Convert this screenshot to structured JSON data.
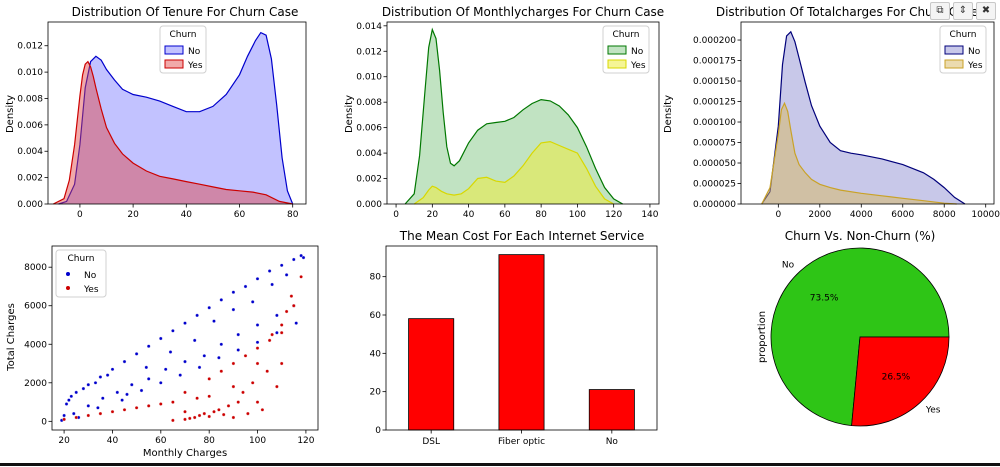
{
  "toolbar": {
    "icons": [
      "copy-icon",
      "expand-icon",
      "delete-icon"
    ],
    "glyphs": [
      "⧉",
      "⇕",
      "✖"
    ]
  },
  "colors": {
    "no_blue": "#0000cc",
    "yes_red": "#cc0000",
    "green": "#007700",
    "yellow": "#d8d800",
    "navy": "#00007a",
    "gold": "#c9a227",
    "bar": "#ff0000",
    "pie_no": "#2ec516",
    "pie_yes": "#ff0000"
  },
  "chart_data": [
    {
      "type": "area",
      "title": "Distribution Of Tenure For Churn Case",
      "xlabel": "",
      "ylabel": "Density",
      "xlim": [
        -12,
        85
      ],
      "ylim": [
        0,
        0.0138
      ],
      "xticks": [
        "0",
        "20",
        "40",
        "60",
        "80"
      ],
      "yticks": [
        "0.000",
        "0.002",
        "0.004",
        "0.006",
        "0.008",
        "0.010",
        "0.012"
      ],
      "legend": {
        "title": "Churn",
        "labels": [
          "No",
          "Yes"
        ],
        "position": "top-center"
      },
      "series": [
        {
          "name": "No",
          "x": [
            -8,
            -5,
            -2,
            0,
            2,
            4,
            6,
            8,
            10,
            13,
            16,
            20,
            25,
            30,
            35,
            40,
            45,
            50,
            55,
            60,
            63,
            66,
            68,
            70,
            72,
            74,
            76,
            78,
            80
          ],
          "y": [
            0,
            0.0002,
            0.0015,
            0.0045,
            0.0088,
            0.0108,
            0.0112,
            0.0109,
            0.0102,
            0.0094,
            0.0087,
            0.0083,
            0.0081,
            0.0078,
            0.0074,
            0.007,
            0.007,
            0.0074,
            0.0083,
            0.0098,
            0.0112,
            0.0124,
            0.013,
            0.0128,
            0.011,
            0.0075,
            0.0035,
            0.001,
            0
          ]
        },
        {
          "name": "Yes",
          "x": [
            -10,
            -6,
            -4,
            -2,
            0,
            1,
            2,
            3,
            4,
            5,
            6,
            8,
            10,
            13,
            16,
            20,
            25,
            30,
            35,
            40,
            45,
            50,
            55,
            60,
            65,
            70,
            75,
            80
          ],
          "y": [
            0,
            0.0004,
            0.0018,
            0.0045,
            0.0082,
            0.0098,
            0.0106,
            0.0108,
            0.0104,
            0.0097,
            0.0088,
            0.0072,
            0.0058,
            0.0046,
            0.0038,
            0.0031,
            0.0025,
            0.0021,
            0.0019,
            0.0017,
            0.0015,
            0.0013,
            0.0011,
            0.001,
            0.0009,
            0.0007,
            0.0002,
            0
          ]
        }
      ]
    },
    {
      "type": "area",
      "title": "Distribution Of Monthlycharges For Churn Case",
      "xlabel": "",
      "ylabel": "Density",
      "xlim": [
        -5,
        145
      ],
      "ylim": [
        0,
        0.0143
      ],
      "xticks": [
        "0",
        "20",
        "40",
        "60",
        "80",
        "100",
        "120",
        "140"
      ],
      "yticks": [
        "0.000",
        "0.002",
        "0.004",
        "0.006",
        "0.008",
        "0.010",
        "0.012",
        "0.014"
      ],
      "legend": {
        "title": "Churn",
        "labels": [
          "No",
          "Yes"
        ],
        "position": "top-right"
      },
      "series": [
        {
          "name": "No",
          "x": [
            5,
            10,
            13,
            16,
            18,
            20,
            22,
            24,
            26,
            28,
            30,
            32,
            35,
            40,
            45,
            50,
            55,
            60,
            65,
            70,
            75,
            80,
            85,
            90,
            95,
            100,
            105,
            110,
            115,
            120,
            125
          ],
          "y": [
            0,
            0.0008,
            0.0038,
            0.009,
            0.0123,
            0.0137,
            0.013,
            0.0105,
            0.0072,
            0.0045,
            0.0032,
            0.003,
            0.0034,
            0.0048,
            0.0058,
            0.0063,
            0.0064,
            0.0065,
            0.0068,
            0.0074,
            0.0079,
            0.0082,
            0.0081,
            0.0077,
            0.007,
            0.006,
            0.0045,
            0.0028,
            0.0013,
            0.0004,
            0
          ]
        },
        {
          "name": "Yes",
          "x": [
            10,
            15,
            18,
            20,
            22,
            25,
            28,
            32,
            36,
            40,
            45,
            50,
            55,
            60,
            65,
            70,
            75,
            80,
            85,
            90,
            95,
            100,
            105,
            110,
            115,
            120
          ],
          "y": [
            0,
            0.0005,
            0.0011,
            0.0014,
            0.0013,
            0.001,
            0.0008,
            0.0007,
            0.0008,
            0.0012,
            0.002,
            0.0021,
            0.0018,
            0.0017,
            0.0022,
            0.003,
            0.004,
            0.0048,
            0.0049,
            0.0046,
            0.0043,
            0.004,
            0.0028,
            0.0014,
            0.0004,
            0
          ]
        }
      ]
    },
    {
      "type": "area",
      "title": "Distribution Of Totalcharges For Churn Case",
      "xlabel": "",
      "ylabel": "Density",
      "xlim": [
        -1800,
        10400
      ],
      "ylim": [
        0,
        0.000222
      ],
      "xticks": [
        "0",
        "2000",
        "4000",
        "6000",
        "8000",
        "10000"
      ],
      "yticks": [
        "0.000000",
        "0.000025",
        "0.000050",
        "0.000075",
        "0.000100",
        "0.000125",
        "0.000150",
        "0.000175",
        "0.000200"
      ],
      "legend": {
        "title": "Churn",
        "labels": [
          "No",
          "Yes"
        ],
        "position": "top-right"
      },
      "series": [
        {
          "name": "No",
          "x": [
            -800,
            -400,
            0,
            200,
            400,
            600,
            800,
            1000,
            1300,
            1600,
            2000,
            2500,
            3000,
            3500,
            4000,
            5000,
            6000,
            7000,
            7500,
            8000,
            8500,
            9000
          ],
          "y": [
            0,
            1.5e-05,
            9.5e-05,
            0.00017,
            0.000205,
            0.00021,
            0.000198,
            0.000178,
            0.000148,
            0.00012,
            9.5e-05,
            7.5e-05,
            6.5e-05,
            6.2e-05,
            6e-05,
            5.5e-05,
            4.8e-05,
            3.8e-05,
            3e-05,
            2e-05,
            8e-06,
            0
          ]
        },
        {
          "name": "Yes",
          "x": [
            -800,
            -400,
            0,
            150,
            300,
            450,
            600,
            800,
            1000,
            1300,
            1600,
            2000,
            2500,
            3000,
            4000,
            5000,
            6000,
            7000,
            8000,
            8600
          ],
          "y": [
            0,
            2e-05,
            8.5e-05,
            0.000115,
            0.000123,
            0.000113,
            9e-05,
            6.2e-05,
            4.8e-05,
            3.8e-05,
            3e-05,
            2.4e-05,
            2e-05,
            1.7e-05,
            1.3e-05,
            1e-05,
            7e-06,
            4e-06,
            1e-06,
            0
          ]
        }
      ]
    },
    {
      "type": "scatter",
      "title": "",
      "xlabel": "Monthly Charges",
      "ylabel": "Total Charges",
      "xlim": [
        15,
        125
      ],
      "ylim": [
        -450,
        9100
      ],
      "xticks": [
        "20",
        "40",
        "60",
        "80",
        "100",
        "120"
      ],
      "yticks": [
        "0",
        "2000",
        "4000",
        "6000",
        "8000"
      ],
      "legend": {
        "title": "Churn",
        "labels": [
          "No",
          "Yes"
        ],
        "position": "top-left"
      },
      "series": [
        {
          "name": "No",
          "x": [
            20,
            22,
            25,
            30,
            35,
            40,
            45,
            50,
            55,
            60,
            65,
            70,
            75,
            80,
            85,
            90,
            95,
            100,
            105,
            110,
            115,
            118,
            20,
            24,
            30,
            36,
            42,
            48,
            55,
            62,
            70,
            78,
            85,
            92,
            100,
            108,
            115,
            26,
            34,
            44,
            52,
            60,
            68,
            76,
            84,
            92,
            100,
            108,
            116,
            19,
            21,
            23,
            28,
            33,
            38,
            46,
            54,
            64,
            74,
            82,
            90,
            98,
            106,
            112,
            119
          ],
          "y": [
            300,
            1100,
            1500,
            1900,
            2300,
            2700,
            3100,
            3500,
            3900,
            4300,
            4700,
            5100,
            5500,
            5900,
            6300,
            6700,
            7000,
            7400,
            7800,
            8100,
            8400,
            8600,
            100,
            400,
            800,
            1200,
            1500,
            1900,
            2200,
            2700,
            3100,
            3400,
            4000,
            4500,
            5000,
            5500,
            6000,
            200,
            700,
            1100,
            1600,
            2000,
            2400,
            2800,
            3300,
            3700,
            4100,
            4600,
            5100,
            50,
            900,
            1300,
            1700,
            2000,
            2400,
            1400,
            2800,
            3600,
            4200,
            5200,
            5800,
            6200,
            7100,
            7600,
            8500
          ]
        },
        {
          "name": "Yes",
          "x": [
            20,
            25,
            30,
            35,
            40,
            45,
            50,
            55,
            60,
            65,
            70,
            72,
            74,
            76,
            78,
            80,
            82,
            84,
            86,
            88,
            90,
            92,
            94,
            96,
            98,
            100,
            102,
            104,
            106,
            108,
            110,
            112,
            114,
            70,
            75,
            80,
            85,
            90,
            95,
            100,
            105,
            110,
            115,
            118,
            65,
            70,
            80,
            90,
            100,
            110
          ],
          "y": [
            100,
            200,
            300,
            400,
            500,
            600,
            700,
            800,
            900,
            1000,
            100,
            150,
            200,
            300,
            400,
            250,
            500,
            600,
            350,
            800,
            200,
            1000,
            1500,
            400,
            2000,
            3000,
            600,
            2600,
            4500,
            1800,
            5000,
            5700,
            6500,
            1500,
            1200,
            2200,
            2600,
            3000,
            3400,
            3800,
            4200,
            4600,
            6000,
            7500,
            50,
            500,
            1300,
            1800,
            1000,
            3000
          ]
        }
      ]
    },
    {
      "type": "bar",
      "title": "The Mean Cost For Each Internet Service",
      "xlabel": "",
      "ylabel": "",
      "categories": [
        "DSL",
        "Fiber optic",
        "No"
      ],
      "values": [
        58.1,
        91.5,
        21.1
      ],
      "ylim": [
        0,
        96
      ],
      "yticks": [
        "0",
        "20",
        "40",
        "60",
        "80"
      ]
    },
    {
      "type": "pie",
      "title": "Churn Vs. Non-Churn (%)",
      "ylabel": "proportion",
      "labels": [
        "No",
        "Yes"
      ],
      "values": [
        73.5,
        26.5
      ],
      "pct_labels": [
        "73.5%",
        "26.5%"
      ]
    }
  ]
}
